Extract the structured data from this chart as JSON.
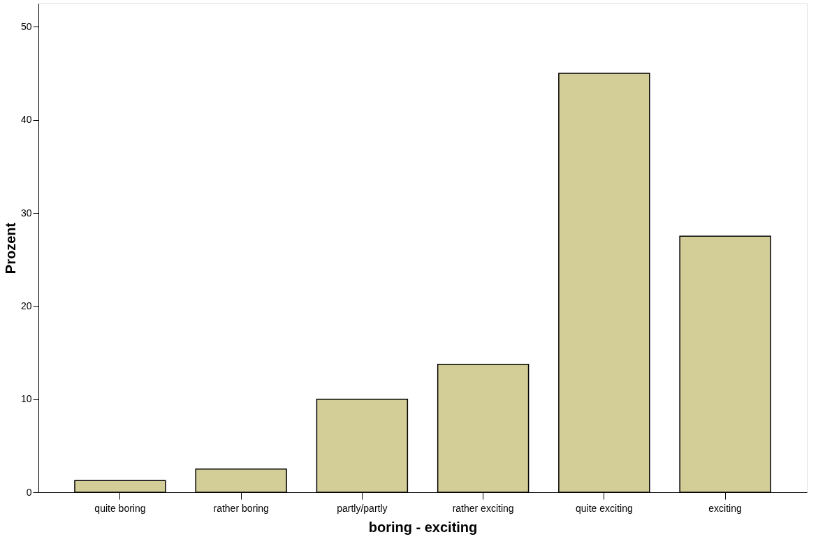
{
  "chart_data": {
    "type": "bar",
    "xlabel": "boring - exciting",
    "ylabel": "Prozent",
    "categories": [
      "quite boring",
      "rather boring",
      "partly/partly",
      "rather exciting",
      "quite exciting",
      "exciting"
    ],
    "values": [
      1.25,
      2.5,
      10,
      13.75,
      45,
      27.5
    ],
    "color": "#d3ce97",
    "ylim": [
      0,
      52.5
    ],
    "yticks": [
      0,
      10,
      20,
      30,
      40,
      50
    ],
    "grid": false
  }
}
